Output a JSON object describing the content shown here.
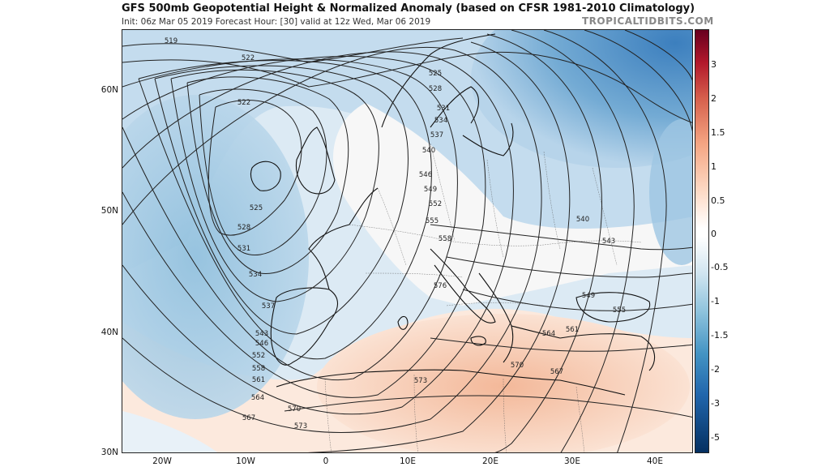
{
  "header": {
    "title": "GFS 500mb Geopotential Height & Normalized Anomaly (based on CFSR 1981-2010 Climatology)",
    "subtitle": "Init: 06z Mar 05 2019   Forecast Hour: [30]   valid at 12z Wed, Mar 06 2019",
    "brand": "TROPICALTIDBITS.COM"
  },
  "axes": {
    "lat_labels": [
      "60N",
      "50N",
      "40N",
      "30N"
    ],
    "lon_labels": [
      "20W",
      "10W",
      "0",
      "10E",
      "20E",
      "30E",
      "40E"
    ]
  },
  "colorbar": {
    "labels": [
      "3",
      "2",
      "1.5",
      "1",
      "0.5",
      "0",
      "-0.5",
      "-1",
      "-1.5",
      "-2",
      "-3",
      "-5"
    ],
    "colors": [
      "#b2182b",
      "#d6604d",
      "#f4a582",
      "#fddbc7",
      "#ffffff",
      "#d1e5f0",
      "#92c5de",
      "#4393c3",
      "#2166ac",
      "#053061"
    ]
  },
  "contour_labels": [
    "519",
    "522",
    "522",
    "525",
    "525",
    "528",
    "528",
    "531",
    "531",
    "534",
    "534",
    "537",
    "537",
    "540",
    "540",
    "543",
    "543",
    "546",
    "546",
    "549",
    "549",
    "552",
    "552",
    "555",
    "555",
    "558",
    "558",
    "561",
    "561",
    "564",
    "564",
    "567",
    "567",
    "570",
    "570",
    "573",
    "573",
    "576"
  ]
}
